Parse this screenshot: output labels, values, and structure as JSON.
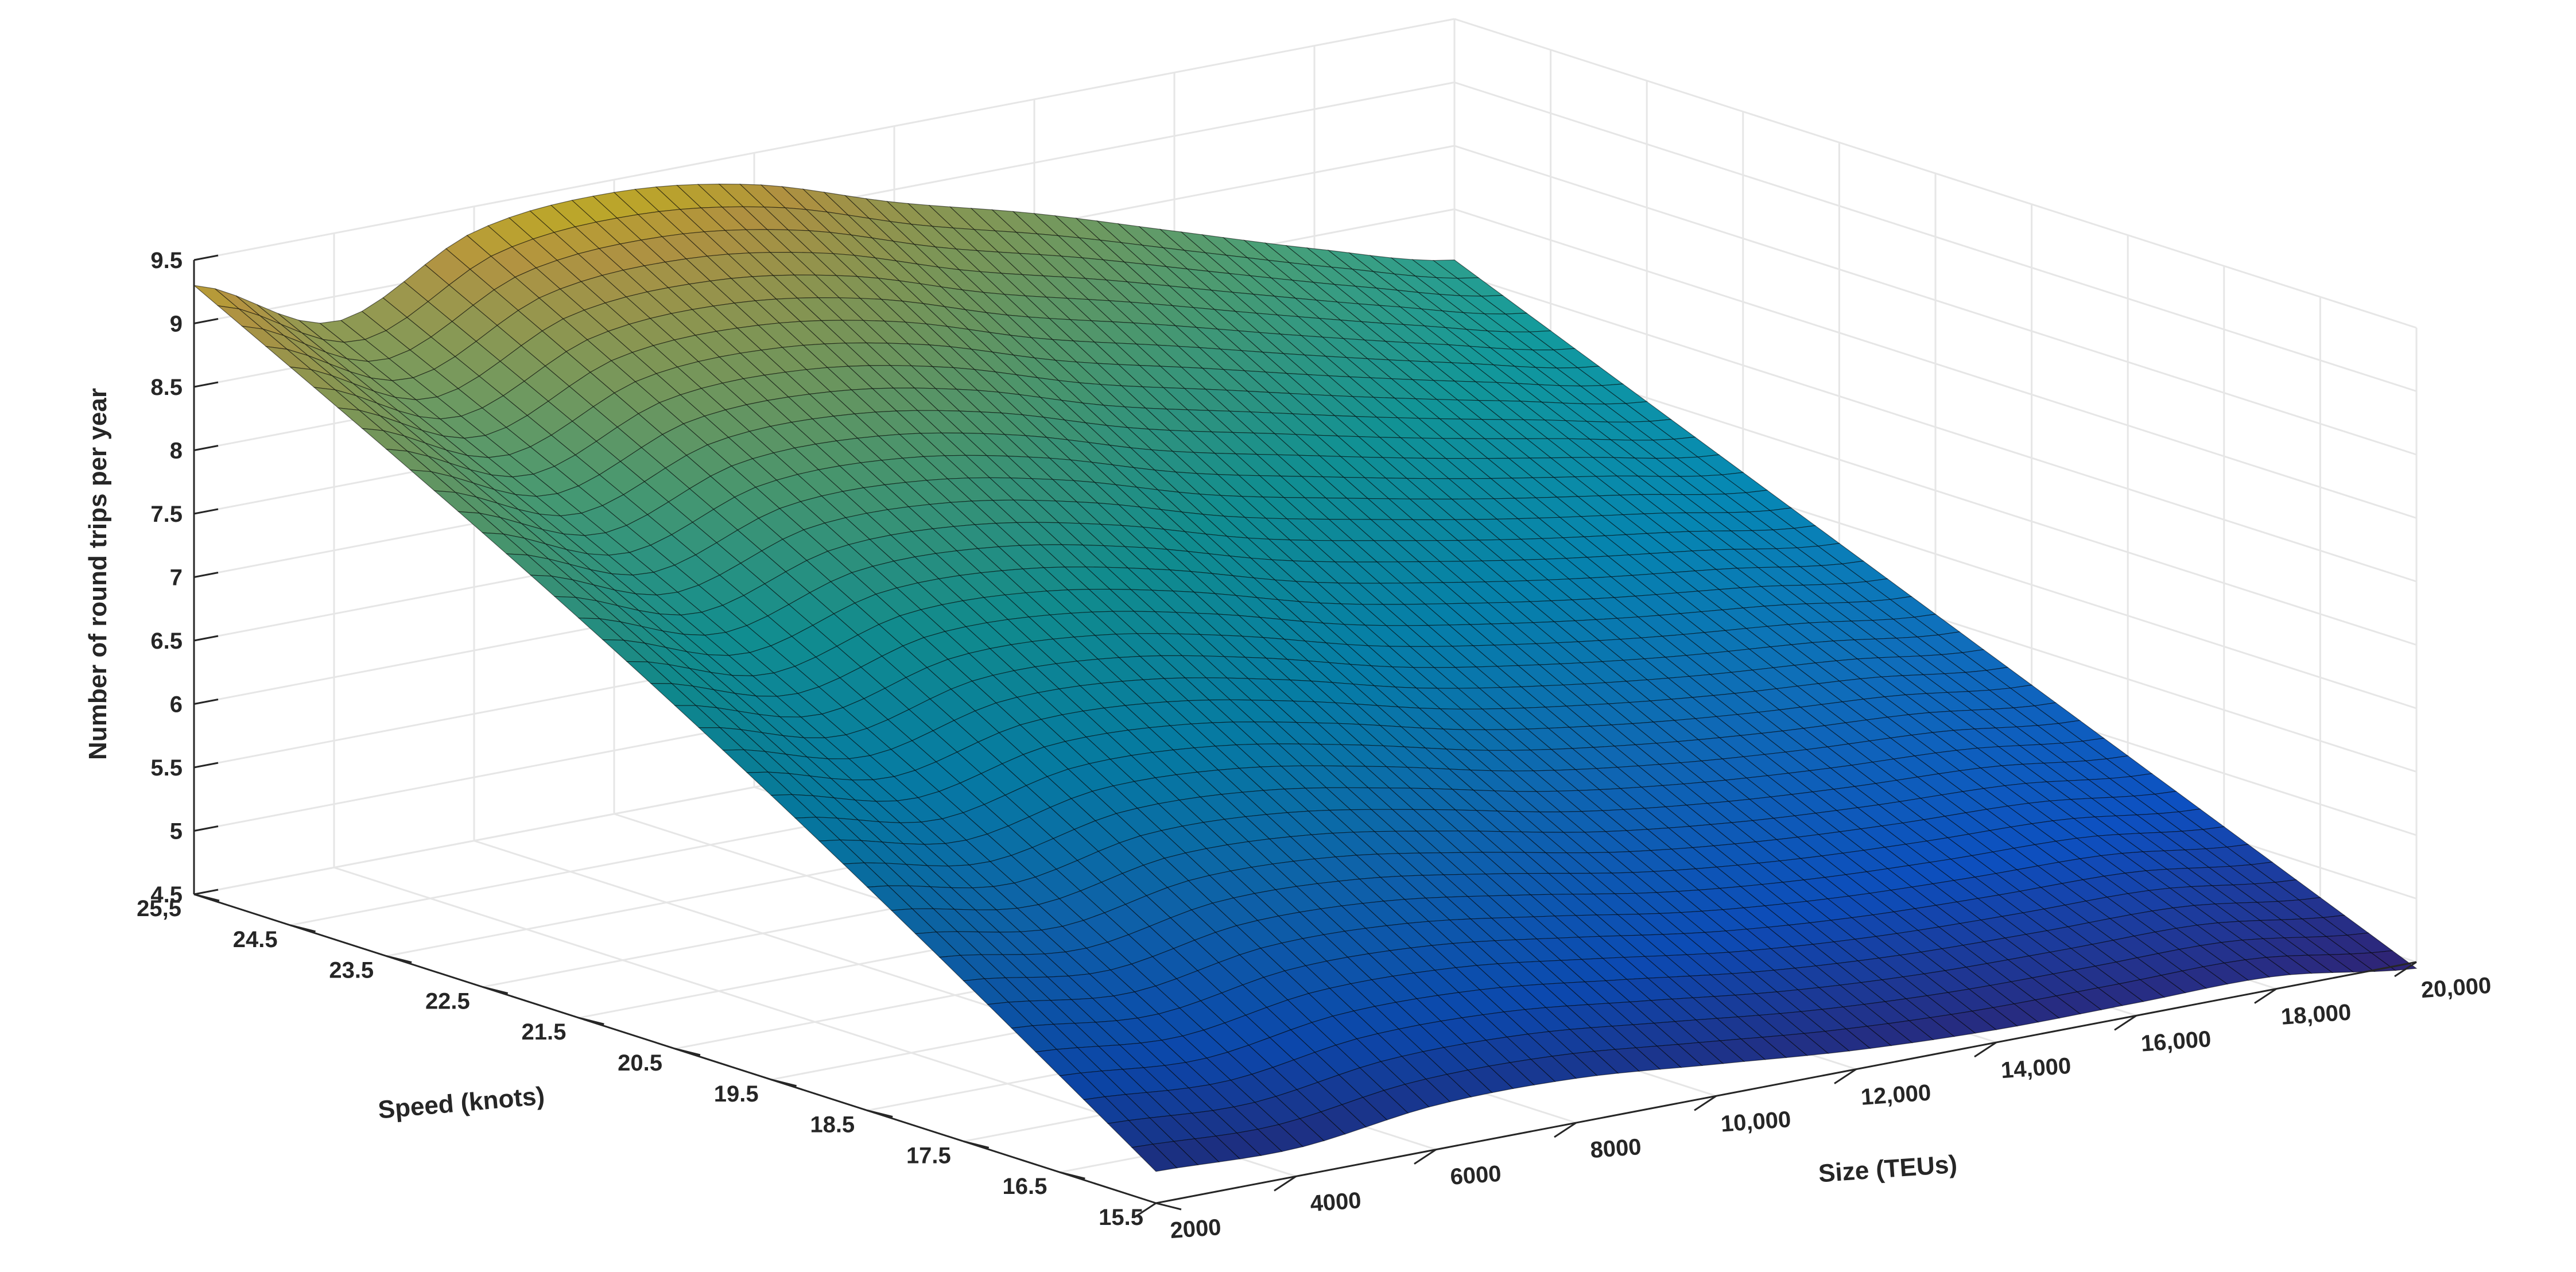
{
  "chart_data": {
    "type": "surface",
    "xlabel": "Size (TEUs)",
    "ylabel": "Speed (knots)",
    "zlabel": "Number of round trips per year",
    "xlim": [
      2000,
      20000
    ],
    "ylim": [
      15.5,
      25.5
    ],
    "zlim": [
      4.5,
      9.5
    ],
    "x_ticks": [
      2000,
      4000,
      6000,
      8000,
      10000,
      12000,
      14000,
      16000,
      18000,
      20000
    ],
    "x_tick_labels": [
      "2000",
      "4000",
      "6000",
      "8000",
      "10,000",
      "12,000",
      "14,000",
      "16,000",
      "18,000",
      "20,000"
    ],
    "y_ticks": [
      15.5,
      16.5,
      17.5,
      18.5,
      19.5,
      20.5,
      21.5,
      22.5,
      23.5,
      24.5,
      25.5
    ],
    "y_tick_labels": [
      "15.5",
      "16.5",
      "17.5",
      "18.5",
      "19.5",
      "20.5",
      "21.5",
      "22.5",
      "23.5",
      "24.5",
      "25,5"
    ],
    "z_ticks": [
      4.5,
      5,
      5.5,
      6,
      6.5,
      7,
      7.5,
      8,
      8.5,
      9,
      9.5
    ],
    "z_tick_labels": [
      "4.5",
      "5",
      "5.5",
      "6",
      "6.5",
      "7",
      "7.5",
      "8",
      "8.5",
      "9",
      "9.5"
    ],
    "grid": true,
    "colormap": "parula",
    "surface_samples": {
      "x": [
        2000,
        4000,
        6000,
        8000,
        10000,
        12000,
        14000,
        16000,
        18000,
        20000
      ],
      "y_speed_15_5": [
        4.75,
        4.72,
        4.85,
        4.85,
        4.75,
        4.65,
        4.6,
        4.6,
        4.6,
        4.45
      ],
      "y_speed_25_5": [
        9.3,
        8.8,
        9.3,
        9.4,
        9.25,
        8.9,
        8.6,
        8.25,
        7.9,
        7.6
      ]
    }
  },
  "colors": {
    "axis": "#262626",
    "grid": "#e6e6e6",
    "colormap_low": "#352a87",
    "colormap_mid": "#14b4c0",
    "colormap_high": "#f9e721"
  }
}
